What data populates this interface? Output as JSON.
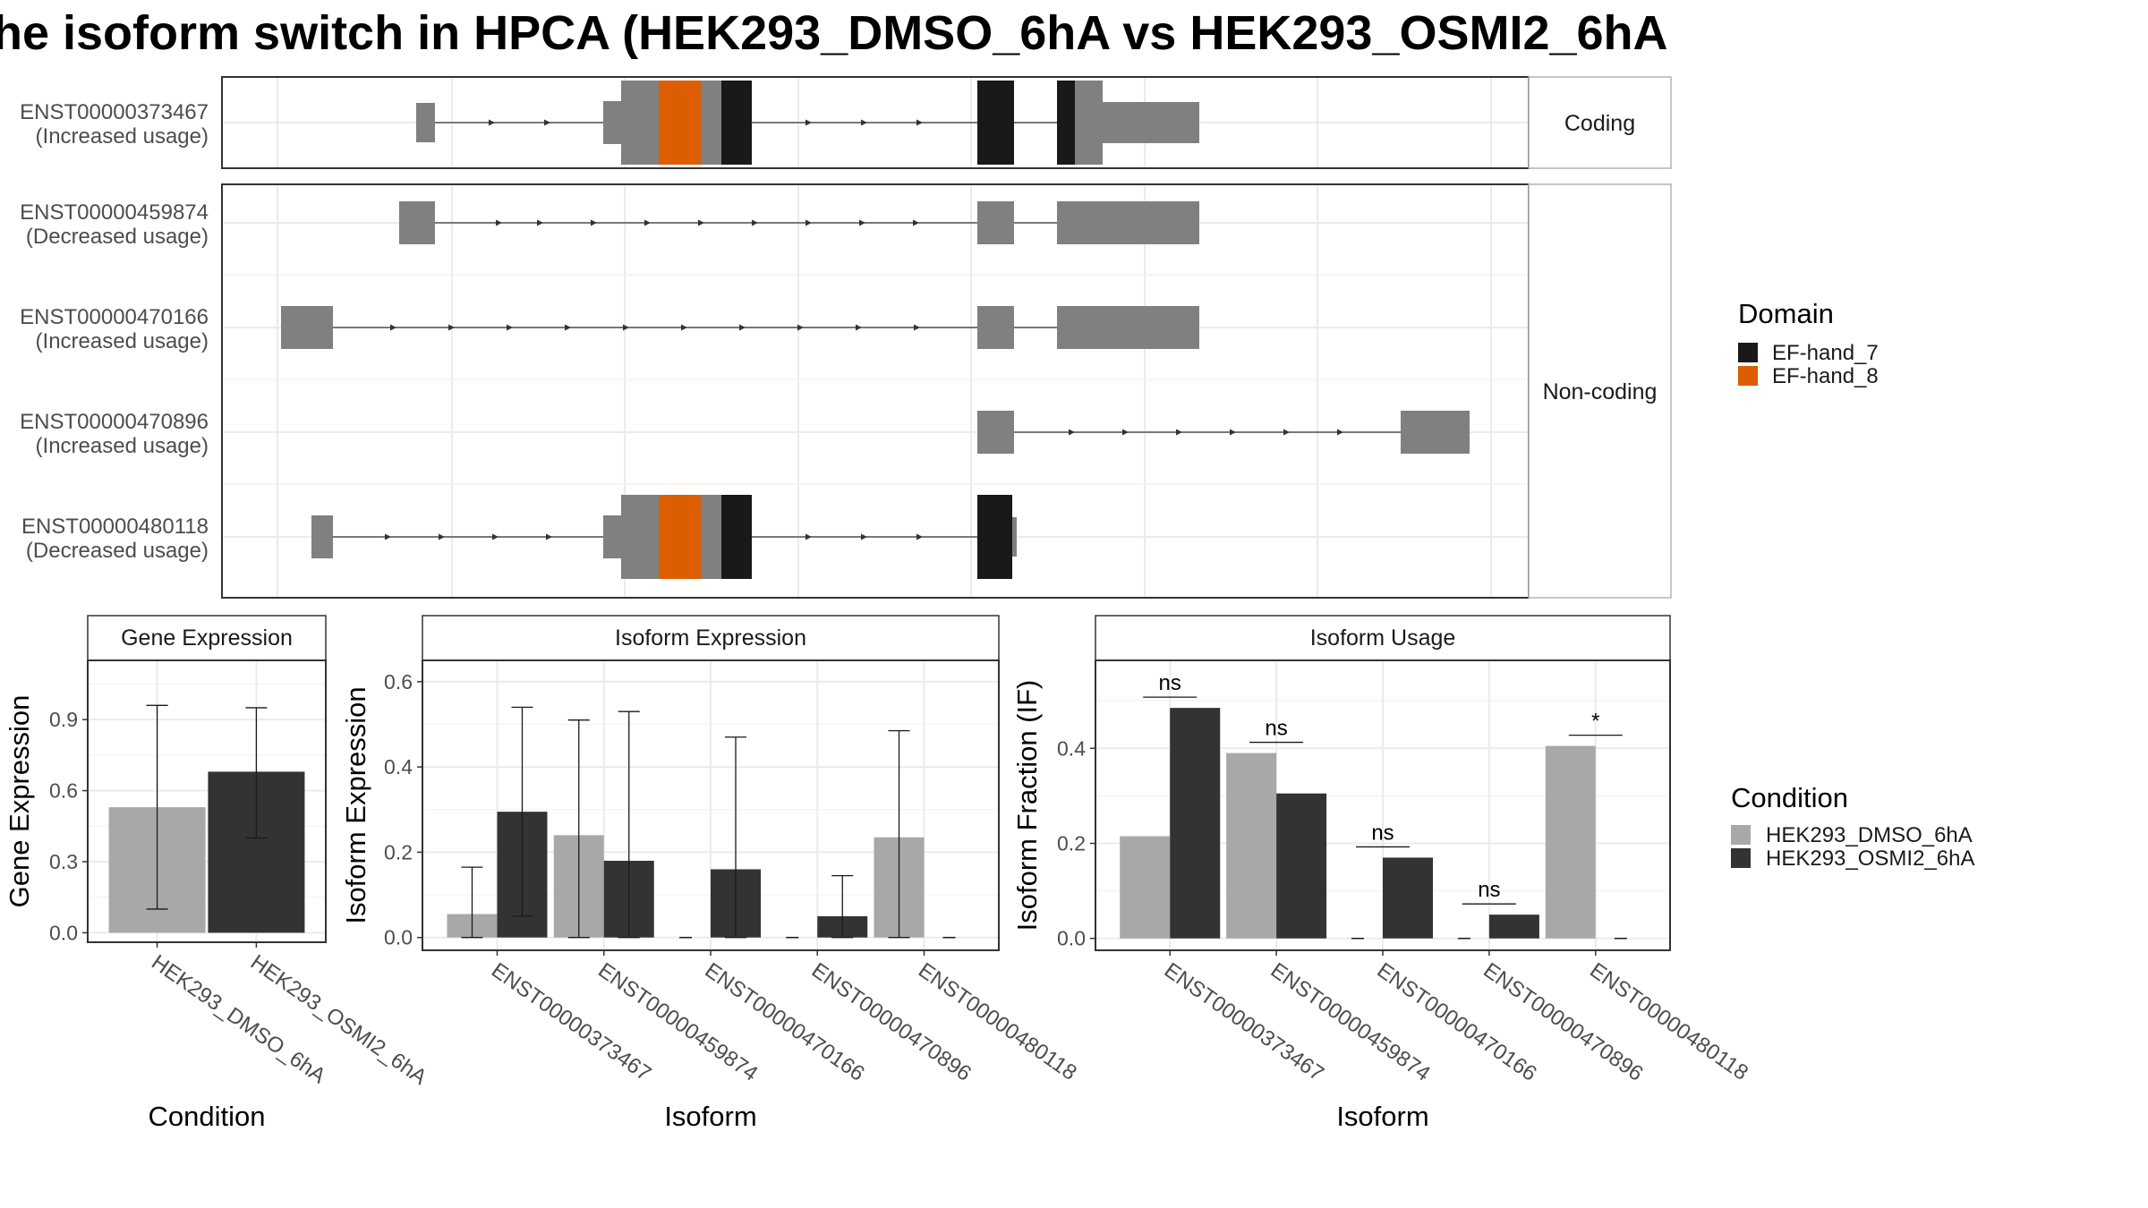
{
  "title": "he isoform switch in HPCA (HEK293_DMSO_6hA vs HEK293_OSMI2_6hA",
  "colors": {
    "dmso": "#A8A8A8",
    "osmi": "#333333",
    "exon_gray": "#808080",
    "ef7": "#191919",
    "ef8": "#DD5E00",
    "grid": "#EBEBEB",
    "frame": "#333333"
  },
  "chart_data": [
    {
      "type": "gene-structure",
      "facets": [
        {
          "label": "Coding",
          "transcripts": [
            "ENST00000373467"
          ]
        },
        {
          "label": "Non-coding",
          "transcripts": [
            "ENST00000459874",
            "ENST00000470166",
            "ENST00000470896",
            "ENST00000480118"
          ]
        }
      ],
      "transcripts": [
        {
          "id": "ENST00000373467",
          "usage": "(Increased usage)"
        },
        {
          "id": "ENST00000459874",
          "usage": "(Decreased usage)"
        },
        {
          "id": "ENST00000470166",
          "usage": "(Increased usage)"
        },
        {
          "id": "ENST00000470896",
          "usage": "(Increased usage)"
        },
        {
          "id": "ENST00000480118",
          "usage": "(Decreased usage)"
        }
      ],
      "legend": {
        "title": "Domain",
        "items": [
          {
            "name": "EF-hand_7",
            "color": "#191919"
          },
          {
            "name": "EF-hand_8",
            "color": "#DD5E00"
          }
        ]
      }
    },
    {
      "type": "bar",
      "strip": "Gene Expression",
      "xlabel": "Condition",
      "ylabel": "Gene Expression",
      "categories": [
        "HEK293_DMSO_6hA",
        "HEK293_OSMI2_6hA"
      ],
      "values": [
        0.53,
        0.68
      ],
      "errors": [
        [
          0.1,
          0.96
        ],
        [
          0.4,
          0.95
        ]
      ],
      "ylim": [
        -0.04,
        1.15
      ],
      "yticks": [
        "0.0",
        "0.3",
        "0.6",
        "0.9"
      ]
    },
    {
      "type": "bar",
      "strip": "Isoform Expression",
      "xlabel": "Isoform",
      "ylabel": "Isoform Expression",
      "categories": [
        "ENST00000373467",
        "ENST00000459874",
        "ENST00000470166",
        "ENST00000470896",
        "ENST00000480118"
      ],
      "series": [
        {
          "name": "HEK293_DMSO_6hA",
          "values": [
            0.055,
            0.24,
            0,
            0,
            0.235
          ],
          "errors": [
            [
              0,
              0.165
            ],
            [
              0,
              0.51
            ],
            [
              0,
              0
            ],
            [
              0,
              0
            ],
            [
              0,
              0.485
            ]
          ]
        },
        {
          "name": "HEK293_OSMI2_6hA",
          "values": [
            0.295,
            0.18,
            0.16,
            0.05,
            0
          ],
          "errors": [
            [
              0.05,
              0.54
            ],
            [
              0,
              0.53
            ],
            [
              0,
              0.47
            ],
            [
              0,
              0.145
            ],
            [
              0,
              0
            ]
          ]
        }
      ],
      "ylim": [
        -0.03,
        0.65
      ],
      "yticks": [
        "0.0",
        "0.2",
        "0.4",
        "0.6"
      ]
    },
    {
      "type": "bar",
      "strip": "Isoform Usage",
      "xlabel": "Isoform",
      "ylabel": "Isoform Fraction (IF)",
      "categories": [
        "ENST00000373467",
        "ENST00000459874",
        "ENST00000470166",
        "ENST00000470896",
        "ENST00000480118"
      ],
      "series": [
        {
          "name": "HEK293_DMSO_6hA",
          "values": [
            0.215,
            0.39,
            0,
            0,
            0.405
          ]
        },
        {
          "name": "HEK293_OSMI2_6hA",
          "values": [
            0.485,
            0.305,
            0.17,
            0.05,
            0
          ]
        }
      ],
      "significance": [
        "ns",
        "ns",
        "ns",
        "ns",
        "*"
      ],
      "ylim": [
        -0.025,
        0.585
      ],
      "yticks": [
        "0.0",
        "0.2",
        "0.4"
      ],
      "legend": {
        "title": "Condition",
        "items": [
          "HEK293_DMSO_6hA",
          "HEK293_OSMI2_6hA"
        ]
      }
    }
  ]
}
